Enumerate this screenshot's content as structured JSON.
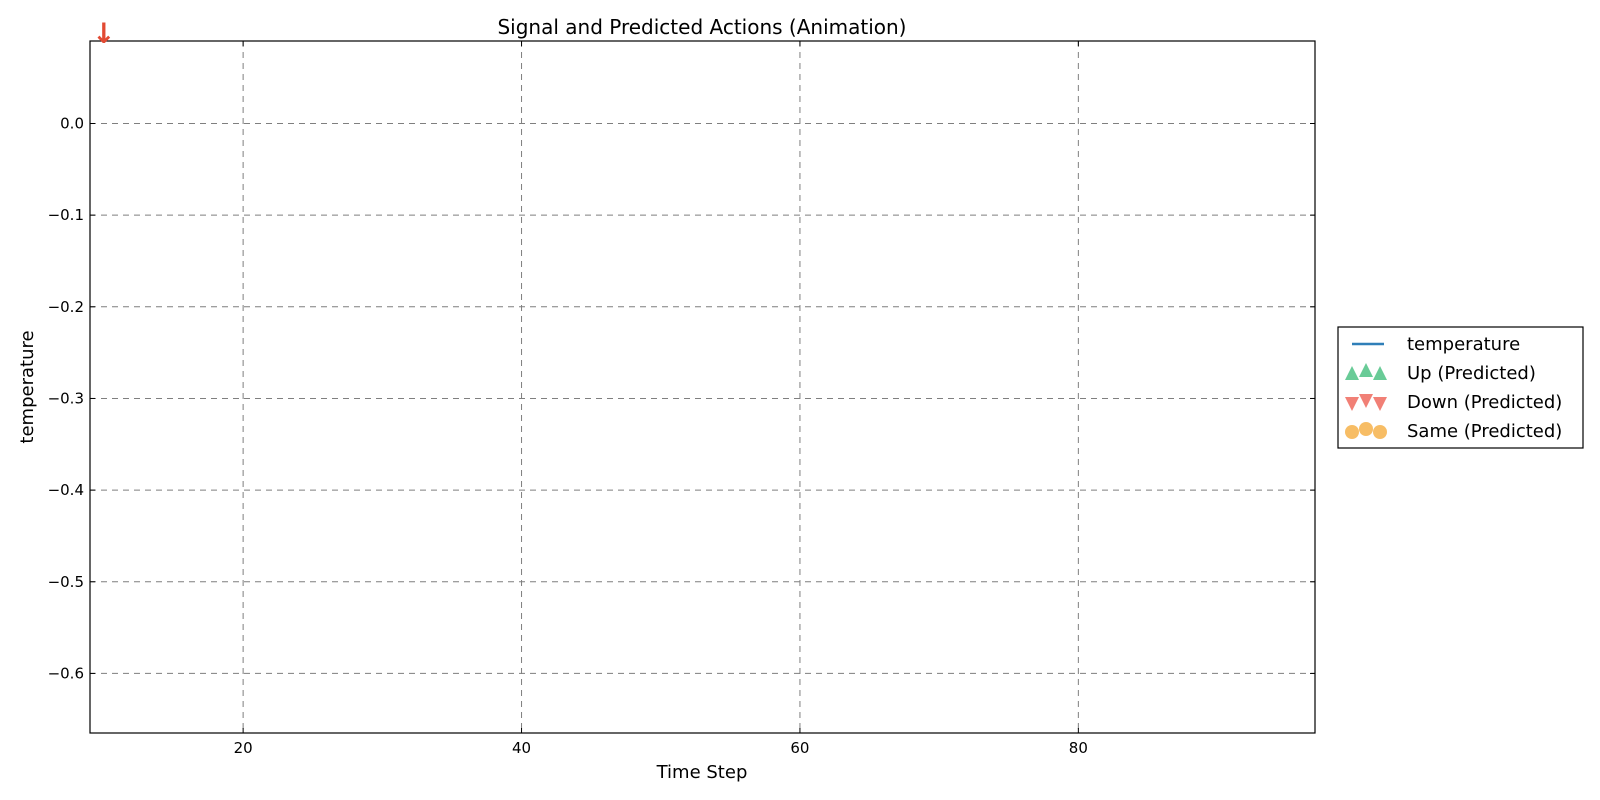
{
  "chart_data": {
    "type": "line",
    "title": "Signal and Predicted Actions (Animation)",
    "xlabel": "Time Step",
    "ylabel": "temperature",
    "xlim": [
      9,
      97
    ],
    "ylim": [
      -0.665,
      0.09
    ],
    "x_ticks": [
      20,
      40,
      60,
      80
    ],
    "x_tick_labels": [
      "20",
      "40",
      "60",
      "80"
    ],
    "y_ticks": [
      0.0,
      -0.1,
      -0.2,
      -0.3,
      -0.4,
      -0.5,
      -0.6
    ],
    "y_tick_labels": [
      "0.0",
      "−0.1",
      "−0.2",
      "−0.3",
      "−0.4",
      "−0.5",
      "−0.6"
    ],
    "grid": true,
    "legend_position": "right, outside",
    "series": [
      {
        "name": "temperature",
        "kind": "line",
        "color": "#2f7fb8",
        "x": [],
        "y": []
      },
      {
        "name": "Up (Predicted)",
        "kind": "marker",
        "marker": "triangle-up",
        "color": "#4fc285",
        "x": [],
        "y": []
      },
      {
        "name": "Down (Predicted)",
        "kind": "marker",
        "marker": "triangle-down",
        "color": "#ee6a5e",
        "x": [],
        "y": []
      },
      {
        "name": "Same (Predicted)",
        "kind": "marker",
        "marker": "circle",
        "color": "#f6b24a",
        "x": [],
        "y": []
      }
    ],
    "annotation": {
      "glyph": "↓",
      "x": 10,
      "y": 0.09,
      "color": "#e24a33"
    }
  }
}
